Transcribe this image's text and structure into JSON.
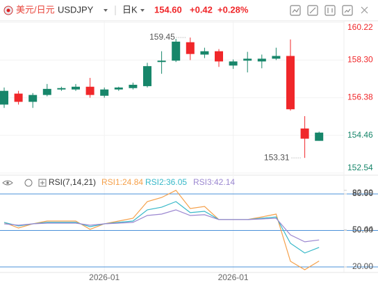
{
  "header": {
    "symbol_name": "美元/日元",
    "symbol": "USDJPY",
    "period": "日K",
    "price": "154.60",
    "change": "+0.42",
    "change_pct": "+0.28%"
  },
  "chart_data": [
    {
      "type": "candlestick",
      "up_color": "#17866a",
      "down_color": "#f0272a",
      "categories": [
        null,
        null,
        null,
        null,
        null,
        null,
        null,
        "2026-01",
        null,
        null,
        null,
        null,
        null,
        null,
        null,
        null,
        "2026-01",
        null,
        null,
        null,
        null,
        null,
        null
      ],
      "open": [
        156.03,
        156.59,
        156.17,
        156.52,
        156.8,
        156.8,
        156.94,
        156.48,
        156.8,
        156.87,
        156.97,
        158.2,
        158.27,
        159.21,
        158.58,
        158.75,
        158.02,
        158.27,
        158.23,
        158.37,
        158.51,
        154.81,
        154.18
      ],
      "high": [
        156.9,
        156.73,
        156.62,
        157.08,
        156.94,
        157.08,
        157.39,
        156.9,
        156.94,
        157.15,
        158.16,
        158.75,
        159.38,
        159.45,
        158.93,
        158.86,
        158.33,
        158.72,
        158.58,
        158.93,
        159.35,
        155.44,
        154.65
      ],
      "low": [
        155.86,
        156.03,
        155.86,
        156.45,
        156.73,
        156.73,
        156.38,
        156.38,
        156.73,
        156.8,
        156.9,
        157.6,
        158.2,
        158.3,
        158.4,
        157.95,
        157.85,
        157.67,
        157.88,
        158.3,
        155.72,
        153.31,
        154.18
      ],
      "close": [
        156.73,
        156.17,
        156.52,
        156.83,
        156.87,
        156.94,
        156.52,
        156.8,
        156.9,
        157.04,
        157.99,
        158.27,
        159.24,
        158.61,
        158.75,
        158.23,
        158.23,
        158.37,
        158.37,
        158.51,
        155.79,
        154.29,
        154.6
      ],
      "ylim": [
        152.5,
        160.3
      ],
      "yticks": [
        160.22,
        {
          "value": 158.3,
          "label": "158.30"
        },
        156.38,
        154.46,
        152.54
      ],
      "grid": true
    },
    {
      "type": "line",
      "indicator": "RSI(7,14,21)",
      "series": [
        {
          "name": "RSI1:24.84",
          "color": "#f5a04a",
          "values": [
            56.6,
            52.0,
            55.4,
            57.7,
            57.7,
            57.7,
            50.9,
            55.4,
            57.7,
            60.0,
            73.7,
            77.1,
            82.99,
            68.0,
            69.7,
            58.9,
            58.9,
            58.9,
            61.1,
            63.4,
            24.6,
            17.7,
            24.84
          ]
        },
        {
          "name": "RSI2:36.05",
          "color": "#36b8c8",
          "values": [
            56.6,
            53.7,
            55.4,
            56.6,
            56.6,
            56.6,
            53.1,
            55.4,
            56.6,
            57.7,
            66.9,
            69.1,
            73.7,
            64.6,
            65.7,
            58.9,
            58.9,
            58.9,
            60.0,
            61.1,
            39.4,
            31.4,
            36.05
          ]
        },
        {
          "name": "RSI3:42.14",
          "color": "#9b87d0",
          "values": [
            55.4,
            54.3,
            55.4,
            56.0,
            56.0,
            56.0,
            54.3,
            55.4,
            56.0,
            56.6,
            62.3,
            63.4,
            66.9,
            62.3,
            62.9,
            58.9,
            58.9,
            58.9,
            59.4,
            60.0,
            46.3,
            40.6,
            42.14
          ]
        }
      ],
      "ylim": [
        15.4,
        84
      ],
      "yticks": [
        {
          "value": 80,
          "label": "80.00"
        },
        82.99,
        {
          "value": 50,
          "label": "50.00"
        },
        50.44,
        {
          "value": 20,
          "label": "20.00"
        }
      ],
      "levels": [
        80,
        50,
        20
      ],
      "level_color": "#4a90d9"
    }
  ]
}
